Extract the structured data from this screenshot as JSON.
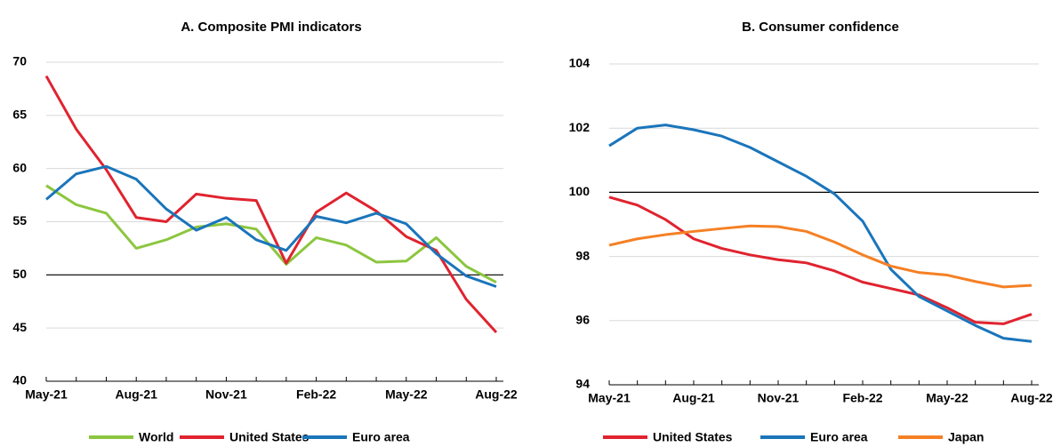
{
  "chart_data": [
    {
      "type": "line",
      "title": "A. Composite PMI indicators",
      "categories": [
        "May-21",
        null,
        null,
        "Aug-21",
        null,
        null,
        "Nov-21",
        null,
        null,
        "Feb-22",
        null,
        null,
        "May-22",
        null,
        null,
        "Aug-22"
      ],
      "series": [
        {
          "name": "World",
          "color": "#8cc63f",
          "values": [
            58.4,
            56.6,
            55.8,
            52.5,
            53.3,
            54.5,
            54.8,
            54.3,
            51.0,
            53.5,
            52.8,
            51.2,
            51.3,
            53.5,
            50.8,
            49.3
          ]
        },
        {
          "name": "United States",
          "color": "#e0232f",
          "values": [
            68.7,
            63.7,
            59.9,
            55.4,
            55.0,
            57.6,
            57.2,
            57.0,
            51.1,
            55.9,
            57.7,
            56.0,
            53.6,
            52.3,
            47.7,
            44.6
          ]
        },
        {
          "name": "Euro area",
          "color": "#1a75bb",
          "values": [
            57.1,
            59.5,
            60.2,
            59.0,
            56.2,
            54.2,
            55.4,
            53.3,
            52.3,
            55.5,
            54.9,
            55.8,
            54.8,
            52.0,
            49.9,
            48.9
          ]
        }
      ],
      "ylim": [
        40,
        70
      ],
      "yticks": [
        40,
        45,
        50,
        55,
        60,
        65,
        70
      ],
      "reference_line": 50,
      "grid": true
    },
    {
      "type": "line",
      "title": "B. Consumer confidence",
      "categories": [
        "May-21",
        null,
        null,
        "Aug-21",
        null,
        null,
        "Nov-21",
        null,
        null,
        "Feb-22",
        null,
        null,
        "May-22",
        null,
        null,
        "Aug-22"
      ],
      "series": [
        {
          "name": "United States",
          "color": "#e0232f",
          "values": [
            99.85,
            99.6,
            99.15,
            98.55,
            98.25,
            98.05,
            97.9,
            97.8,
            97.55,
            97.2,
            97.0,
            96.8,
            96.4,
            95.95,
            95.9,
            96.2
          ]
        },
        {
          "name": "Euro area",
          "color": "#1a75bb",
          "values": [
            101.45,
            102.0,
            102.1,
            101.95,
            101.75,
            101.4,
            100.95,
            100.5,
            99.95,
            99.1,
            97.6,
            96.75,
            96.3,
            95.85,
            95.45,
            95.35
          ]
        },
        {
          "name": "Japan",
          "color": "#f58025",
          "values": [
            98.35,
            98.55,
            98.68,
            98.78,
            98.87,
            98.95,
            98.93,
            98.78,
            98.45,
            98.05,
            97.7,
            97.5,
            97.42,
            97.22,
            97.05,
            97.1
          ]
        }
      ],
      "ylim": [
        94,
        104
      ],
      "yticks": [
        94,
        96,
        98,
        100,
        102,
        104
      ],
      "reference_line": 100,
      "grid": true
    }
  ]
}
